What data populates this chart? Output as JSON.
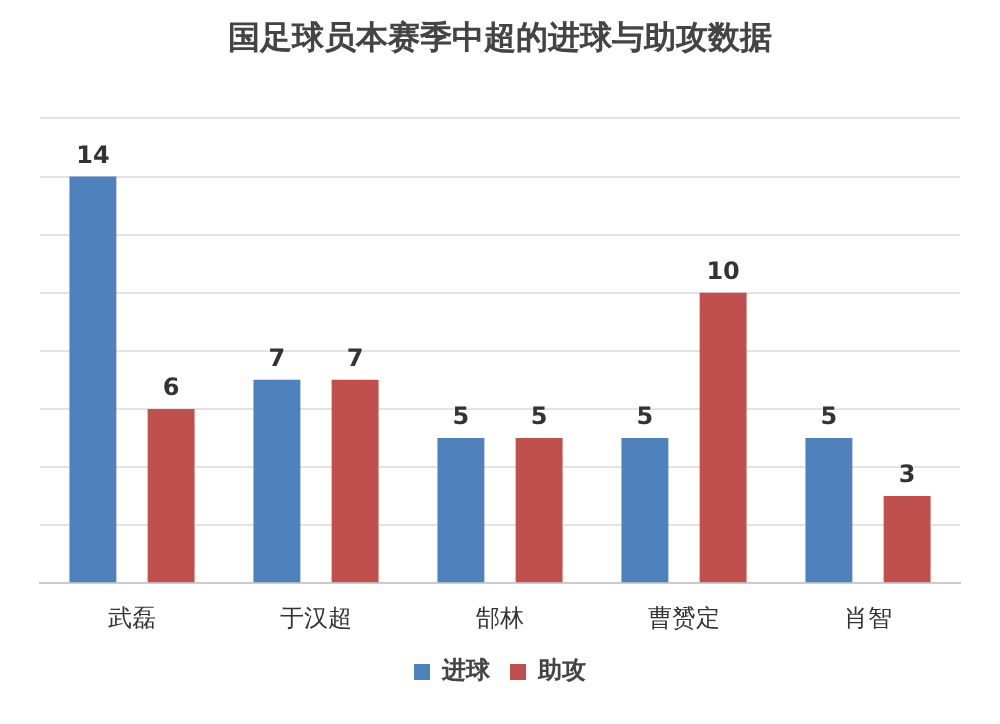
{
  "chart_data": {
    "type": "bar",
    "title": "国足球员本赛季中超的进球与助攻数据",
    "categories": [
      "武磊",
      "于汉超",
      "郜林",
      "曹赟定",
      "肖智"
    ],
    "series": [
      {
        "name": "进球",
        "color": "#4f81bd",
        "values": [
          14,
          7,
          5,
          5,
          5
        ]
      },
      {
        "name": "助攻",
        "color": "#c0504d",
        "values": [
          6,
          7,
          5,
          10,
          3
        ]
      }
    ],
    "ylim": [
      0,
      16
    ],
    "yticks": [
      {
        "value": 0,
        "label": null
      },
      {
        "value": 2,
        "label": null
      },
      {
        "value": 4,
        "label": null
      },
      {
        "value": 6,
        "label": null
      },
      {
        "value": 8,
        "label": null
      },
      {
        "value": 10,
        "label": null
      },
      {
        "value": 12,
        "label": null
      },
      {
        "value": 14,
        "label": null
      },
      {
        "value": 16,
        "label": null
      }
    ],
    "grid": "y",
    "tick_labels": "x",
    "legend": "bottom",
    "data_labels": true
  }
}
